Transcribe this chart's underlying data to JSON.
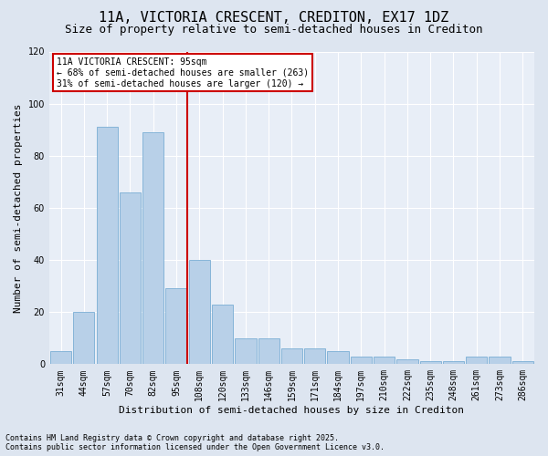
{
  "title": "11A, VICTORIA CRESCENT, CREDITON, EX17 1DZ",
  "subtitle": "Size of property relative to semi-detached houses in Crediton",
  "xlabel": "Distribution of semi-detached houses by size in Crediton",
  "ylabel": "Number of semi-detached properties",
  "categories": [
    "31sqm",
    "44sqm",
    "57sqm",
    "70sqm",
    "82sqm",
    "95sqm",
    "108sqm",
    "120sqm",
    "133sqm",
    "146sqm",
    "159sqm",
    "171sqm",
    "184sqm",
    "197sqm",
    "210sqm",
    "222sqm",
    "235sqm",
    "248sqm",
    "261sqm",
    "273sqm",
    "286sqm"
  ],
  "values": [
    5,
    20,
    91,
    66,
    89,
    29,
    40,
    23,
    10,
    10,
    6,
    6,
    5,
    3,
    3,
    2,
    1,
    1,
    3,
    3,
    1
  ],
  "bar_color": "#b8d0e8",
  "bar_edge_color": "#7aadd4",
  "vline_x_index": 5,
  "vline_color": "#cc0000",
  "annotation_title": "11A VICTORIA CRESCENT: 95sqm",
  "annotation_line1": "← 68% of semi-detached houses are smaller (263)",
  "annotation_line2": "31% of semi-detached houses are larger (120) →",
  "annotation_box_facecolor": "#ffffff",
  "annotation_box_edgecolor": "#cc0000",
  "footnote1": "Contains HM Land Registry data © Crown copyright and database right 2025.",
  "footnote2": "Contains public sector information licensed under the Open Government Licence v3.0.",
  "ylim": [
    0,
    120
  ],
  "yticks": [
    0,
    20,
    40,
    60,
    80,
    100,
    120
  ],
  "bg_color": "#dde5f0",
  "plot_bg_color": "#e8eef7",
  "title_fontsize": 11,
  "subtitle_fontsize": 9,
  "footnote_fontsize": 6,
  "ylabel_fontsize": 8,
  "xlabel_fontsize": 8,
  "tick_fontsize": 7,
  "annot_fontsize": 7
}
